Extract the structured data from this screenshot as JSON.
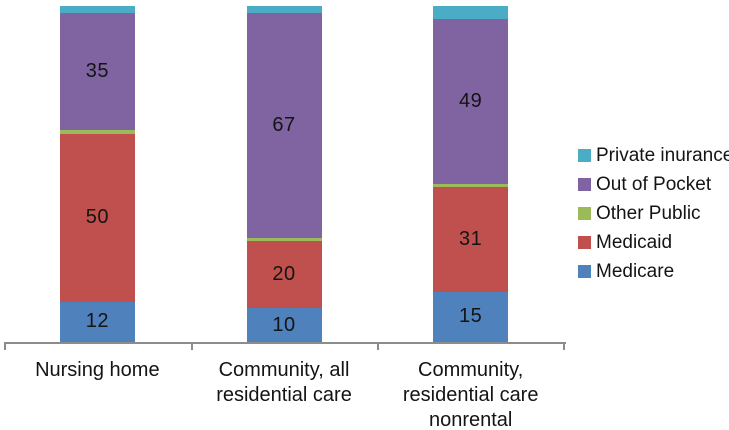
{
  "chart_data": {
    "type": "bar",
    "stacked": true,
    "title": "",
    "xlabel": "",
    "ylabel": "",
    "ylim": [
      0,
      100
    ],
    "grid": false,
    "categories": [
      "Nursing home",
      "Community, all\nresidential care",
      "Community,\nresidential care\nnonrental"
    ],
    "series": [
      {
        "name": "Medicare",
        "color": "#4F81BD",
        "values": [
          12,
          10,
          15
        ]
      },
      {
        "name": "Medicaid",
        "color": "#C0504D",
        "values": [
          50,
          20,
          31
        ]
      },
      {
        "name": "Other Public",
        "color": "#9BBB59",
        "values": [
          1,
          1,
          1
        ]
      },
      {
        "name": "Out of Pocket",
        "color": "#8064A2",
        "values": [
          35,
          67,
          49
        ]
      },
      {
        "name": "Private inurance",
        "color": "#4BACC6",
        "values": [
          2,
          2,
          4
        ]
      }
    ],
    "legend": {
      "position": "right",
      "items": [
        "Private inurance",
        "Out of Pocket",
        "Other Public",
        "Medicaid",
        "Medicare"
      ]
    },
    "data_labels": {
      "min_value_to_show": 10,
      "color": "#141414"
    },
    "axis_color": "#8C8C8C"
  }
}
